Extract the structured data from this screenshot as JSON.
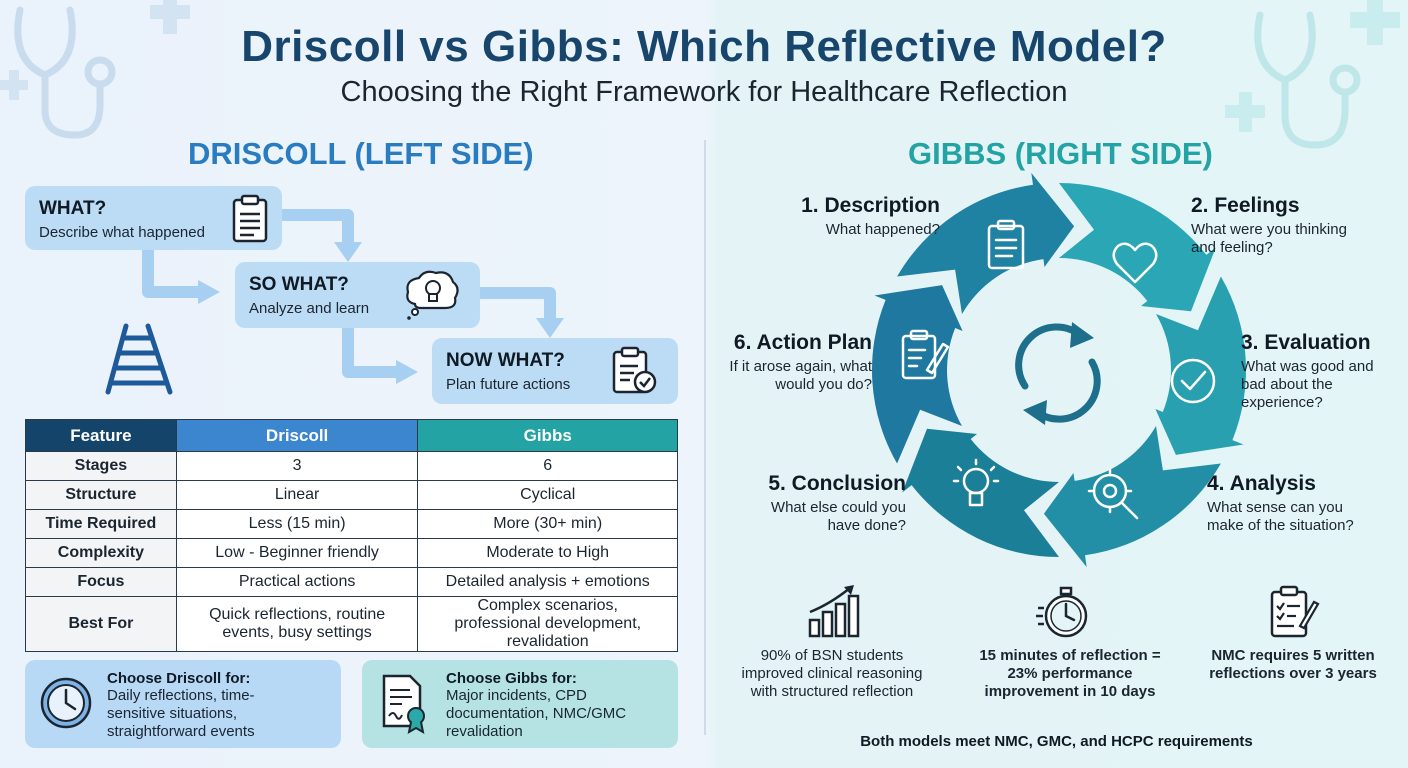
{
  "header": {
    "title": "Driscoll vs Gibbs: Which Reflective Model?",
    "subtitle": "Choosing the Right Framework for Healthcare Reflection"
  },
  "driscoll": {
    "section_title": "DRISCOLL (LEFT SIDE)",
    "steps": [
      {
        "title": "WHAT?",
        "desc": "Describe what happened",
        "icon": "clipboard-icon"
      },
      {
        "title": "SO WHAT?",
        "desc": "Analyze and learn",
        "icon": "thought-bubble-lightbulb-icon"
      },
      {
        "title": "NOW WHAT?",
        "desc": "Plan future actions",
        "icon": "checklist-icon"
      }
    ]
  },
  "gibbs": {
    "section_title": "GIBBS (RIGHT SIDE)",
    "stages": [
      {
        "title": "1. Description",
        "desc": "What happened?",
        "icon": "clipboard-icon"
      },
      {
        "title": "2. Feelings",
        "desc": "What were you thinking and feeling?",
        "icon": "heart-icon"
      },
      {
        "title": "3. Evaluation",
        "desc": "What was good and bad about the experience?",
        "icon": "checkmark-icon"
      },
      {
        "title": "4. Analysis",
        "desc": "What sense can you make of the situation?",
        "icon": "gear-magnifier-icon"
      },
      {
        "title": "5. Conclusion",
        "desc": "What else could you have done?",
        "icon": "lightbulb-icon"
      },
      {
        "title": "6. Action Plan",
        "desc": "If it arose again, what would you do?",
        "icon": "clipboard-pen-icon"
      }
    ]
  },
  "table": {
    "headers": [
      "Feature",
      "Driscoll",
      "Gibbs"
    ],
    "rows": [
      [
        "Stages",
        "3",
        "6"
      ],
      [
        "Structure",
        "Linear",
        "Cyclical"
      ],
      [
        "Time Required",
        "Less (15 min)",
        "More (30+ min)"
      ],
      [
        "Complexity",
        "Low - Beginner friendly",
        "Moderate to High"
      ],
      [
        "Focus",
        "Practical actions",
        "Detailed analysis + emotions"
      ],
      [
        "Best For",
        "Quick reflections, routine events, busy settings",
        "Complex scenarios, professional development, revalidation"
      ]
    ]
  },
  "choose": {
    "driscoll": {
      "title": "Choose Driscoll for:",
      "desc": "Daily reflections, time-sensitive situations, straightforward events",
      "icon": "clock-icon"
    },
    "gibbs": {
      "title": "Choose Gibbs for:",
      "desc": "Major incidents, CPD documentation, NMC/GMC revalidation",
      "icon": "certificate-icon"
    }
  },
  "stats": [
    {
      "text": "90% of BSN students improved clinical reasoning with structured reflection",
      "icon": "growth-chart-icon"
    },
    {
      "text": "15 minutes of reflection = 23% performance improvement in 10 days",
      "icon": "stopwatch-icon"
    },
    {
      "text": "NMC requires 5 written reflections over 3 years",
      "icon": "checklist-icon"
    }
  ],
  "footer_note": "Both models meet NMC, GMC, and HCPC requirements",
  "colors": {
    "title": "#17456c",
    "driscoll_accent": "#2a7cc0",
    "gibbs_accent": "#23a3a3",
    "table_header_feature": "#15446b",
    "table_header_driscoll": "#3b86cf",
    "table_header_gibbs": "#23a3a3"
  }
}
